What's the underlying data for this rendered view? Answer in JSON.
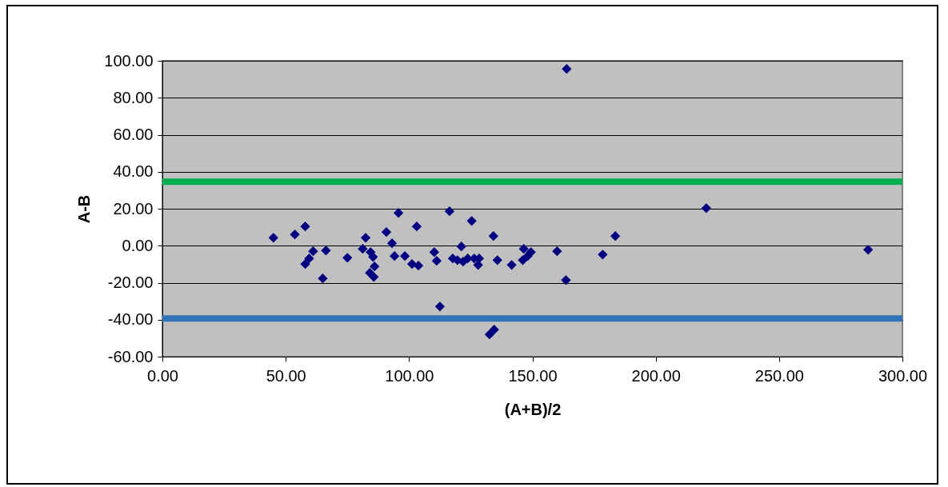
{
  "chart_data": {
    "type": "scatter",
    "xlabel": "(A+B)/2",
    "ylabel": "A-B",
    "marker": "diamond",
    "grid": "y",
    "x": [
      45,
      53.7,
      57.9,
      57.9,
      59.5,
      61.1,
      65,
      66.3,
      75,
      81.2,
      82.4,
      84.4,
      85.4,
      84.1,
      85.7,
      86,
      90.8,
      93.1,
      94.1,
      95.7,
      98.3,
      101.2,
      103.1,
      103.8,
      110.2,
      111.2,
      112.5,
      116.4,
      117.7,
      119.6,
      121.2,
      121.9,
      123.8,
      125.4,
      126.4,
      128,
      128.4,
      132.6,
      134.5,
      134.2,
      135.8,
      141.6,
      146.1,
      146.5,
      148.1,
      149.4,
      160,
      163.6,
      163.9,
      178.5,
      183.6,
      220.5,
      286.1
    ],
    "series": [
      {
        "color": "#000080",
        "values": [
          4.3,
          6.1,
          10.4,
          -9.9,
          -6.9,
          -3.0,
          -17.7,
          -2.6,
          -6.5,
          -1.7,
          4.3,
          -3.5,
          -6.1,
          -14.7,
          -16.9,
          -11.2,
          7.4,
          1.3,
          -5.6,
          17.7,
          -5.6,
          -9.9,
          10.4,
          -10.8,
          -3.5,
          -8.2,
          -32.9,
          18.6,
          -6.9,
          -7.8,
          -0.4,
          -8.6,
          -6.9,
          13.4,
          -6.9,
          -10.4,
          -6.9,
          -48,
          -45.4,
          5.2,
          -7.8,
          -10.4,
          -7.8,
          -1.7,
          -5.6,
          -3.5,
          -3.0,
          -18.6,
          95.6,
          -4.8,
          5.2,
          20.3,
          -2.2
        ]
      }
    ],
    "xlim": [
      0,
      300
    ],
    "xticks": [
      {
        "value": 0,
        "label": "0.00"
      },
      {
        "value": 50,
        "label": "50.00"
      },
      {
        "value": 100,
        "label": "100.00"
      },
      {
        "value": 150,
        "label": "150.00"
      },
      {
        "value": 200,
        "label": "200.00"
      },
      {
        "value": 250,
        "label": "250.00"
      },
      {
        "value": 300,
        "label": "300.00"
      }
    ],
    "ylim": [
      -60,
      100
    ],
    "yticks": [
      {
        "value": -60,
        "label": "-60.00"
      },
      {
        "value": -40,
        "label": "-40.00"
      },
      {
        "value": -20,
        "label": "-20.00"
      },
      {
        "value": 0,
        "label": "0.00"
      },
      {
        "value": 20,
        "label": "20.00"
      },
      {
        "value": 40,
        "label": "40.00"
      },
      {
        "value": 60,
        "label": "60.00"
      },
      {
        "value": 80,
        "label": "80.00"
      },
      {
        "value": 100,
        "label": "100.00"
      }
    ],
    "ref_lines": [
      {
        "axis": "y",
        "value": 34.6,
        "color": "#00b050"
      },
      {
        "axis": "y",
        "value": -39.4,
        "color": "#2e75b6"
      }
    ]
  }
}
